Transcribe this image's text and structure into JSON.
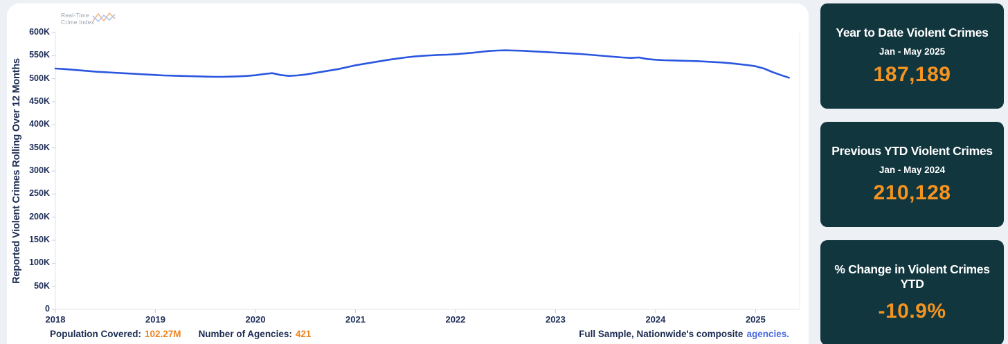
{
  "logo": {
    "line1": "Real-Time",
    "line2": "Crime Index"
  },
  "chart_data": {
    "type": "line",
    "title": "",
    "xlabel": "",
    "ylabel": "Reported Violent Crimes Rolling Over 12 Months",
    "xlim": [
      2018.0,
      2025.44
    ],
    "ylim": [
      0,
      600000
    ],
    "grid": false,
    "legend_position": "none",
    "x_tick_values": [
      2018,
      2019,
      2020,
      2021,
      2022,
      2023,
      2024,
      2025
    ],
    "x_tick_labels": [
      "2018",
      "2019",
      "2020",
      "2021",
      "2022",
      "2023",
      "2024",
      "2025"
    ],
    "y_tick_values": [
      0,
      50000,
      100000,
      150000,
      200000,
      250000,
      300000,
      350000,
      400000,
      450000,
      500000,
      550000,
      600000
    ],
    "y_tick_labels": [
      "0",
      "50K",
      "100K",
      "150K",
      "200K",
      "250K",
      "300K",
      "350K",
      "400K",
      "450K",
      "500K",
      "550K",
      "600K"
    ],
    "series": [
      {
        "name": "Reported Violent Crimes Rolling Over 12 Months",
        "color": "#2a55df",
        "start": "2018-01",
        "frequency": "monthly",
        "values": [
          522000,
          521000,
          519500,
          518000,
          516500,
          515000,
          514000,
          513000,
          512000,
          511000,
          510000,
          509000,
          508000,
          507000,
          506500,
          506000,
          505500,
          505000,
          504500,
          504000,
          504000,
          504500,
          505000,
          506000,
          507500,
          510000,
          512000,
          508000,
          506000,
          507000,
          509000,
          512000,
          515000,
          518000,
          521000,
          525000,
          529000,
          532000,
          535000,
          538000,
          541000,
          543500,
          546000,
          548000,
          549500,
          550500,
          551500,
          552000,
          553000,
          554500,
          556000,
          558000,
          560000,
          561000,
          561500,
          561000,
          560500,
          559500,
          558500,
          557500,
          556500,
          555500,
          554500,
          553500,
          552000,
          550500,
          549000,
          547500,
          546000,
          545000,
          546000,
          542500,
          541000,
          540000,
          539500,
          539000,
          538500,
          538000,
          537000,
          536000,
          535000,
          533500,
          531500,
          529500,
          527000,
          522000,
          514500,
          508000,
          502000
        ]
      }
    ]
  },
  "cards": [
    {
      "title": "Year to Date Violent Crimes",
      "subtitle": "Jan - May 2025",
      "value": "187,189"
    },
    {
      "title": "Previous YTD Violent Crimes",
      "subtitle": "Jan - May 2024",
      "value": "210,128"
    },
    {
      "title": "% Change in Violent Crimes YTD",
      "value": "-10.9%"
    }
  ],
  "footer": {
    "population_label": "Population Covered:",
    "population_value": "102.27M",
    "agencies_label": "Number of Agencies:",
    "agencies_value": "421",
    "sample_text": "Full Sample, Nationwide's composite",
    "sample_link": "agencies."
  },
  "colors": {
    "line_blue": "#2a55df",
    "card_background": "#11363e",
    "value_orange": "#f5941f",
    "footer_orange": "#ee8420",
    "link_blue": "#4a6be0",
    "axis_navy": "#20305a",
    "page_background": "#edf0f4",
    "bottom_strip": "#14263a"
  }
}
